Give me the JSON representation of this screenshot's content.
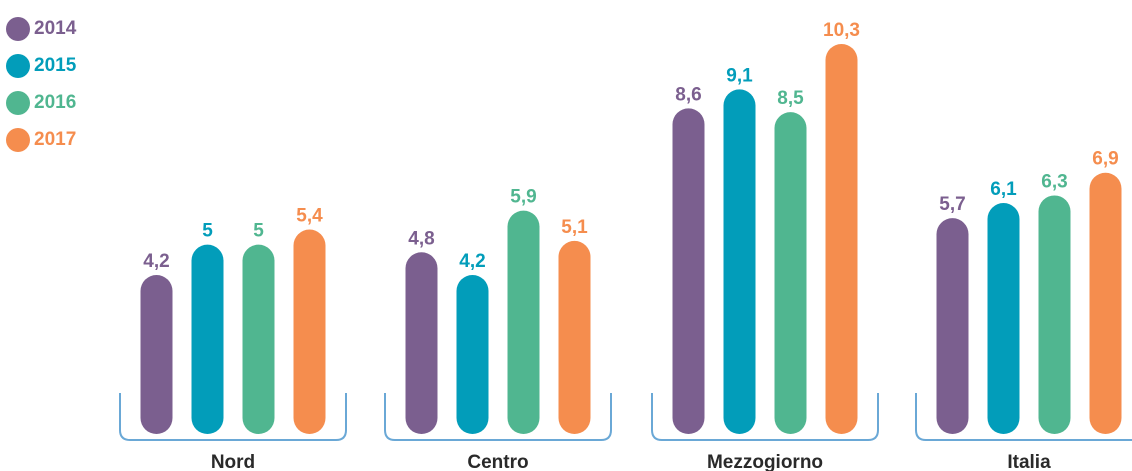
{
  "chart_data": {
    "type": "bar",
    "categories": [
      "Nord",
      "Centro",
      "Mezzogiorno",
      "Italia"
    ],
    "series": [
      {
        "name": "2014",
        "color": "#7b5f8f",
        "values": [
          4.2,
          4.8,
          8.6,
          5.7
        ],
        "labels": [
          "4,2",
          "4,8",
          "8,6",
          "5,7"
        ]
      },
      {
        "name": "2015",
        "color": "#029dba",
        "values": [
          5,
          4.2,
          9.1,
          6.1
        ],
        "labels": [
          "5",
          "4,2",
          "9,1",
          "6,1"
        ]
      },
      {
        "name": "2016",
        "color": "#50b690",
        "values": [
          5,
          5.9,
          8.5,
          6.3
        ],
        "labels": [
          "5",
          "5,9",
          "8,5",
          "6,3"
        ]
      },
      {
        "name": "2017",
        "color": "#f58d4e",
        "values": [
          5.4,
          5.1,
          10.3,
          6.9
        ],
        "labels": [
          "5,4",
          "5,1",
          "10,3",
          "6,9"
        ]
      }
    ],
    "ylim": [
      0,
      10.3
    ],
    "grid": false,
    "legend_position": "top-left",
    "bracket_color": "#6aa8d6"
  }
}
